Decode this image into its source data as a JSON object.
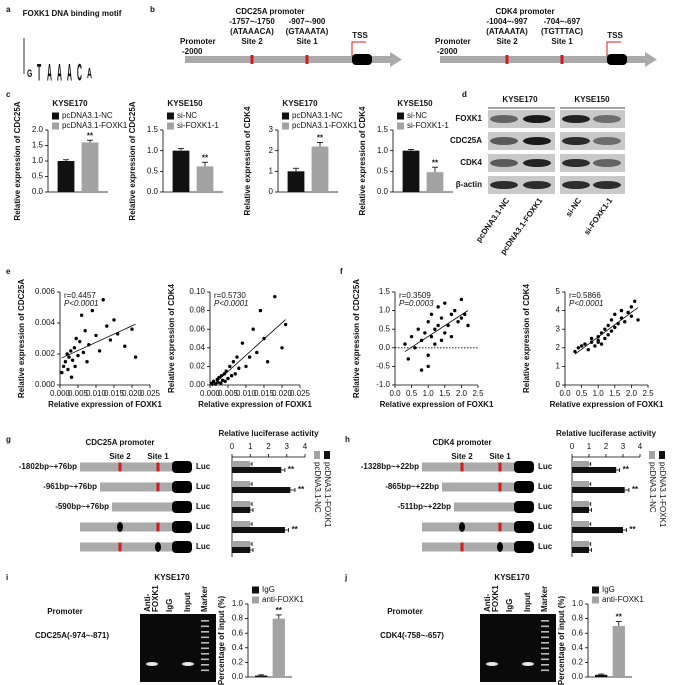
{
  "panel_letters": [
    "a",
    "b",
    "c",
    "d",
    "e",
    "f",
    "g",
    "h",
    "i",
    "j"
  ],
  "motif": {
    "title": "FOXK1 DNA binding motif",
    "letters": [
      "G",
      "T",
      "A",
      "A",
      "A",
      "C",
      "A"
    ]
  },
  "promoters": [
    {
      "title": "CDC25A promoter",
      "start": [
        "Promoter",
        "-2000"
      ],
      "sites": [
        [
          "-1757~-1750",
          "(ATAAACA)",
          "Site 2"
        ],
        [
          "-907~-900",
          "(GTAAATA)",
          "Site 1"
        ]
      ],
      "tss": "TSS"
    },
    {
      "title": "CDK4 promoter",
      "start": [
        "Promoter",
        "-2000"
      ],
      "sites": [
        [
          "-1004~-997",
          "(ATAAATA)",
          "Site 2"
        ],
        [
          "-704~-697",
          "(TGTTTAC)",
          "Site 1"
        ]
      ],
      "tss": "TSS"
    }
  ],
  "western": {
    "groups": [
      "KYSE170",
      "KYSE150"
    ],
    "proteins": [
      "FOXK1",
      "CDC25A",
      "CDK4",
      "β-actin"
    ],
    "lanes": [
      "pcDNA3.1-NC",
      "pcDNA3.1-FOXK1",
      "si-NC",
      "si-FOXK1-1"
    ]
  },
  "luciferase": [
    {
      "title": "CDC25A promoter",
      "sites": [
        "Site 2",
        "Site 1"
      ],
      "constructs": [
        "-1802bp~+76bp",
        "-961bp~+76bp",
        "-590bp~+76bp",
        null,
        null
      ],
      "reporter": [
        "Luc",
        "Luc",
        "Luc",
        "Luc",
        "Luc"
      ]
    },
    {
      "title": "CDK4 promoter",
      "sites": [
        "Site 2",
        "Site 1"
      ],
      "constructs": [
        "-1328bp~+22bp",
        "-865bp~+22bp",
        "-511bp~+22bp",
        null,
        null
      ],
      "reporter": [
        "Luc",
        "Luc",
        "Luc",
        "Luc",
        "Luc"
      ]
    }
  ],
  "chip": [
    {
      "cell": "KYSE170",
      "lanes": [
        [
          "Anti-",
          "FOXK1"
        ],
        [
          "IgG"
        ],
        [
          "Input"
        ],
        [
          "Marker"
        ]
      ],
      "promoter_label": "Promoter",
      "region": "CDC25A(-974~-871)"
    },
    {
      "cell": "KYSE170",
      "lanes": [
        [
          "Anti-",
          "FOXK1"
        ],
        [
          "IgG"
        ],
        [
          "Input"
        ],
        [
          "Marker"
        ]
      ],
      "promoter_label": "Promoter",
      "region": "CDK4(-758~-657)"
    }
  ],
  "chart_data": [
    {
      "type": "bar",
      "title": "KYSE170",
      "y_label": "Relative expression of CDC25A",
      "ylim": [
        0,
        2
      ],
      "yticks": [
        {
          "value": 0,
          "label": "0.0"
        },
        {
          "value": 0.5,
          "label": "0.5"
        },
        {
          "value": 1,
          "label": "1.0"
        },
        {
          "value": 1.5,
          "label": "1.5"
        },
        {
          "value": 2,
          "label": "2.0"
        }
      ],
      "series": [
        {
          "name": "pcDNA3.1-NC",
          "color": "#111111",
          "values": [
            1.0
          ],
          "errors": [
            0.04
          ],
          "annotations": [
            null
          ]
        },
        {
          "name": "pcDNA3.1-FOXK1",
          "color": "#a3a3a3",
          "values": [
            1.6
          ],
          "errors": [
            0.07
          ],
          "annotations": [
            "**"
          ]
        }
      ]
    },
    {
      "type": "bar",
      "title": "KYSE150",
      "y_label": "Relative expression of CDC25A",
      "ylim": [
        0,
        1.5
      ],
      "yticks": [
        {
          "value": 0,
          "label": "0.0"
        },
        {
          "value": 0.5,
          "label": "0.5"
        },
        {
          "value": 1,
          "label": "1.0"
        },
        {
          "value": 1.5,
          "label": "1.5"
        }
      ],
      "series": [
        {
          "name": "si-NC",
          "color": "#111111",
          "values": [
            1.0
          ],
          "errors": [
            0.05
          ],
          "annotations": [
            null
          ]
        },
        {
          "name": "si-FOXK1-1",
          "color": "#a3a3a3",
          "values": [
            0.62
          ],
          "errors": [
            0.1
          ],
          "annotations": [
            "**"
          ]
        }
      ]
    },
    {
      "type": "bar",
      "title": "KYSE170",
      "y_label": "Relative expression of CDK4",
      "ylim": [
        0,
        3
      ],
      "yticks": [
        0,
        1,
        2,
        3
      ],
      "series": [
        {
          "name": "pcDNA3.1-NC",
          "color": "#111111",
          "values": [
            1.0
          ],
          "errors": [
            0.15
          ],
          "annotations": [
            null
          ]
        },
        {
          "name": "pcDNA3.1-FOXK1",
          "color": "#a3a3a3",
          "values": [
            2.2
          ],
          "errors": [
            0.2
          ],
          "annotations": [
            "**"
          ]
        }
      ]
    },
    {
      "type": "bar",
      "title": "KYSE150",
      "y_label": "Relative expression of CDK4",
      "ylim": [
        0,
        1.5
      ],
      "yticks": [
        {
          "value": 0,
          "label": "0.0"
        },
        {
          "value": 0.5,
          "label": "0.5"
        },
        {
          "value": 1,
          "label": "1.0"
        },
        {
          "value": 1.5,
          "label": "1.5"
        }
      ],
      "series": [
        {
          "name": "si-NC",
          "color": "#111111",
          "values": [
            1.0
          ],
          "errors": [
            0.03
          ],
          "annotations": [
            null
          ]
        },
        {
          "name": "si-FOXK1-1",
          "color": "#a3a3a3",
          "values": [
            0.48
          ],
          "errors": [
            0.12
          ],
          "annotations": [
            "**"
          ]
        }
      ]
    },
    {
      "type": "scatter",
      "x_label": "Relative expression of FOXK1",
      "y_label": "Relative expression of CDC25A",
      "r_text": "r=0.4457",
      "p_text": "P<0.0001",
      "color": "#000000",
      "xlim": [
        0,
        0.025
      ],
      "xticks": [
        {
          "value": 0,
          "label": "0.000"
        },
        {
          "value": 0.005,
          "label": "0.005"
        },
        {
          "value": 0.01,
          "label": "0.010"
        },
        {
          "value": 0.015,
          "label": "0.015"
        },
        {
          "value": 0.02,
          "label": "0.020"
        },
        {
          "value": 0.025,
          "label": "0.025"
        }
      ],
      "ylim": [
        0,
        0.006
      ],
      "yticks": [
        {
          "value": 0,
          "label": "0.000"
        },
        {
          "value": 0.002,
          "label": "0.002"
        },
        {
          "value": 0.004,
          "label": "0.004"
        },
        {
          "value": 0.006,
          "label": "0.006"
        }
      ],
      "x": [
        0.0005,
        0.001,
        0.0015,
        0.002,
        0.0022,
        0.0025,
        0.003,
        0.0032,
        0.0035,
        0.004,
        0.0042,
        0.0045,
        0.005,
        0.0055,
        0.006,
        0.0065,
        0.007,
        0.0075,
        0.008,
        0.009,
        0.01,
        0.011,
        0.012,
        0.013,
        0.014,
        0.015,
        0.016,
        0.018,
        0.02,
        0.021
      ],
      "y": [
        0.0008,
        0.0012,
        0.0015,
        0.002,
        0.001,
        0.0018,
        0.0022,
        0.0005,
        0.0016,
        0.0024,
        0.0012,
        0.003,
        0.0019,
        0.0028,
        0.0045,
        0.0021,
        0.0035,
        0.0015,
        0.0026,
        0.0048,
        0.0032,
        0.0022,
        0.0055,
        0.0038,
        0.0029,
        0.0042,
        0.0033,
        0.0025,
        0.0036,
        0.0018
      ]
    },
    {
      "type": "scatter",
      "x_label": "Relative expression of FOXK1",
      "y_label": "Relative expression of CDK4",
      "r_text": "r=0.5730",
      "p_text": "P<0.0001",
      "color": "#000000",
      "xlim": [
        0,
        0.025
      ],
      "xticks": [
        {
          "value": 0,
          "label": "0.000"
        },
        {
          "value": 0.005,
          "label": "0.005"
        },
        {
          "value": 0.01,
          "label": "0.010"
        },
        {
          "value": 0.015,
          "label": "0.015"
        },
        {
          "value": 0.02,
          "label": "0.020"
        },
        {
          "value": 0.025,
          "label": "0.025"
        }
      ],
      "ylim": [
        0,
        0.1
      ],
      "yticks": [
        {
          "value": 0,
          "label": "0.00"
        },
        {
          "value": 0.02,
          "label": "0.02"
        },
        {
          "value": 0.04,
          "label": "0.04"
        },
        {
          "value": 0.06,
          "label": "0.06"
        },
        {
          "value": 0.08,
          "label": "0.08"
        },
        {
          "value": 0.1,
          "label": "0.10"
        }
      ],
      "x": [
        0.0005,
        0.001,
        0.0015,
        0.002,
        0.0022,
        0.0025,
        0.003,
        0.0032,
        0.0035,
        0.004,
        0.0042,
        0.0045,
        0.005,
        0.0055,
        0.006,
        0.0065,
        0.007,
        0.0075,
        0.008,
        0.009,
        0.01,
        0.011,
        0.012,
        0.013,
        0.014,
        0.015,
        0.016,
        0.018,
        0.02,
        0.021
      ],
      "y": [
        0.002,
        0.004,
        0.001,
        0.006,
        0.003,
        0.008,
        0.002,
        0.01,
        0.005,
        0.012,
        0.004,
        0.015,
        0.007,
        0.02,
        0.01,
        0.025,
        0.012,
        0.03,
        0.018,
        0.045,
        0.02,
        0.03,
        0.06,
        0.035,
        0.08,
        0.05,
        0.025,
        0.095,
        0.04,
        0.065
      ]
    },
    {
      "type": "scatter",
      "x_label": "Relative expression of FOXK1",
      "y_label": "Relative expression of CDC25A",
      "r_text": "r=0.3509",
      "p_text": "P=0.0003",
      "color": "#000000",
      "reference_line": 0,
      "xlim": [
        0,
        2.5
      ],
      "xticks": [
        {
          "value": 0,
          "label": "0.0"
        },
        {
          "value": 0.5,
          "label": "0.5"
        },
        {
          "value": 1,
          "label": "1.0"
        },
        {
          "value": 1.5,
          "label": "1.5"
        },
        {
          "value": 2,
          "label": "2.0"
        },
        {
          "value": 2.5,
          "label": "2.5"
        }
      ],
      "ylim": [
        -1,
        1.5
      ],
      "yticks": [
        {
          "value": -1,
          "label": "-1.0"
        },
        {
          "value": -0.5,
          "label": "-0.5"
        },
        {
          "value": 0,
          "label": "0.0"
        },
        {
          "value": 0.5,
          "label": "0.5"
        },
        {
          "value": 1,
          "label": "1.0"
        },
        {
          "value": 1.5,
          "label": "1.5"
        }
      ],
      "x": [
        0.3,
        0.4,
        0.5,
        0.6,
        0.7,
        0.8,
        0.8,
        0.9,
        1.0,
        1.0,
        1.1,
        1.1,
        1.2,
        1.2,
        1.3,
        1.3,
        1.4,
        1.4,
        1.5,
        1.5,
        1.6,
        1.7,
        1.7,
        1.8,
        1.9,
        2.0,
        2.0,
        2.1,
        2.2,
        1.0
      ],
      "y": [
        0.1,
        -0.3,
        0.3,
        0.0,
        0.5,
        -0.6,
        0.2,
        0.4,
        0.7,
        -0.2,
        0.3,
        0.9,
        0.1,
        0.5,
        0.6,
        1.1,
        0.2,
        0.8,
        0.4,
        1.2,
        0.6,
        0.9,
        0.3,
        1.0,
        0.7,
        0.8,
        1.3,
        0.9,
        0.6,
        -0.5
      ]
    },
    {
      "type": "scatter",
      "x_label": "Relative expression of FOXK1",
      "y_label": "Relative expression of CDK4",
      "r_text": "r=0.5866",
      "p_text": "P<0.0001",
      "color": "#000000",
      "xlim": [
        0,
        2.5
      ],
      "xticks": [
        {
          "value": 0,
          "label": "0.0"
        },
        {
          "value": 0.5,
          "label": "0.5"
        },
        {
          "value": 1,
          "label": "1.0"
        },
        {
          "value": 1.5,
          "label": "1.5"
        },
        {
          "value": 2,
          "label": "2.0"
        },
        {
          "value": 2.5,
          "label": "2.5"
        }
      ],
      "ylim": [
        0,
        5
      ],
      "yticks": [
        0,
        1,
        2,
        3,
        4,
        5
      ],
      "x": [
        0.3,
        0.4,
        0.5,
        0.6,
        0.7,
        0.8,
        0.8,
        0.9,
        1.0,
        1.0,
        1.1,
        1.1,
        1.2,
        1.2,
        1.3,
        1.3,
        1.4,
        1.4,
        1.5,
        1.5,
        1.6,
        1.7,
        1.7,
        1.8,
        1.9,
        2.0,
        2.0,
        2.1,
        2.2,
        1.0
      ],
      "y": [
        1.8,
        2.0,
        2.1,
        2.2,
        1.9,
        2.3,
        2.5,
        2.1,
        2.4,
        2.6,
        2.2,
        2.8,
        2.5,
        3.0,
        2.7,
        3.2,
        2.9,
        3.5,
        3.1,
        3.8,
        3.3,
        3.6,
        4.0,
        3.4,
        3.9,
        4.2,
        3.7,
        4.5,
        3.5,
        2.3
      ]
    },
    {
      "type": "hbar",
      "title": "Relative luciferase activity",
      "xlim": [
        0,
        4
      ],
      "xticks": [
        0,
        1,
        2,
        3,
        4
      ],
      "series": [
        {
          "name": "pcDNA3.1-NC",
          "color": "#a3a3a3",
          "values": [
            1,
            1,
            1,
            1,
            1
          ],
          "errors": [
            0.1,
            0.1,
            0.1,
            0.1,
            0.1
          ],
          "annotations": [
            null,
            null,
            null,
            null,
            null
          ]
        },
        {
          "name": "pcDNA3.1-FOXK1",
          "color": "#111111",
          "values": [
            2.7,
            3.2,
            1.0,
            2.9,
            1.0
          ],
          "errors": [
            0.2,
            0.25,
            0.15,
            0.2,
            0.15
          ],
          "annotations": [
            "**",
            "**",
            null,
            "**",
            null
          ]
        }
      ]
    },
    {
      "type": "hbar",
      "title": "Relative luciferase activity",
      "xlim": [
        0,
        4
      ],
      "xticks": [
        0,
        1,
        2,
        3,
        4
      ],
      "series": [
        {
          "name": "pcDNA3.1-NC",
          "color": "#a3a3a3",
          "values": [
            1,
            1,
            1,
            1,
            1
          ],
          "errors": [
            0.1,
            0.1,
            0.1,
            0.1,
            0.1
          ],
          "annotations": [
            null,
            null,
            null,
            null,
            null
          ]
        },
        {
          "name": "pcDNA3.1-FOXK1",
          "color": "#111111",
          "values": [
            2.6,
            3.1,
            1.0,
            3.0,
            1.0
          ],
          "errors": [
            0.2,
            0.25,
            0.15,
            0.2,
            0.15
          ],
          "annotations": [
            "**",
            "**",
            null,
            "**",
            null
          ]
        }
      ]
    },
    {
      "type": "bar",
      "y_label": "Percentage of input (%)",
      "ylim": [
        0,
        1
      ],
      "yticks": [
        {
          "value": 0,
          "label": "0.0"
        },
        {
          "value": 0.2,
          "label": "0.2"
        },
        {
          "value": 0.4,
          "label": "0.4"
        },
        {
          "value": 0.6,
          "label": "0.6"
        },
        {
          "value": 0.8,
          "label": "0.8"
        },
        {
          "value": 1,
          "label": "1.0"
        }
      ],
      "series": [
        {
          "name": "IgG",
          "color": "#111111",
          "values": [
            0.02
          ],
          "errors": [
            0.01
          ],
          "annotations": [
            null
          ]
        },
        {
          "name": "anti-FOXK1",
          "color": "#a3a3a3",
          "values": [
            0.8
          ],
          "errors": [
            0.05
          ],
          "annotations": [
            "**"
          ]
        }
      ]
    },
    {
      "type": "bar",
      "y_label": "Percentage of input (%)",
      "ylim": [
        0,
        1
      ],
      "yticks": [
        {
          "value": 0,
          "label": "0.0"
        },
        {
          "value": 0.2,
          "label": "0.2"
        },
        {
          "value": 0.4,
          "label": "0.4"
        },
        {
          "value": 0.6,
          "label": "0.6"
        },
        {
          "value": 0.8,
          "label": "0.8"
        },
        {
          "value": 1,
          "label": "1.0"
        }
      ],
      "series": [
        {
          "name": "IgG",
          "color": "#111111",
          "values": [
            0.03
          ],
          "errors": [
            0.01
          ],
          "annotations": [
            null
          ]
        },
        {
          "name": "anti-FOXK1",
          "color": "#a3a3a3",
          "values": [
            0.7
          ],
          "errors": [
            0.06
          ],
          "annotations": [
            "**"
          ]
        }
      ]
    }
  ]
}
